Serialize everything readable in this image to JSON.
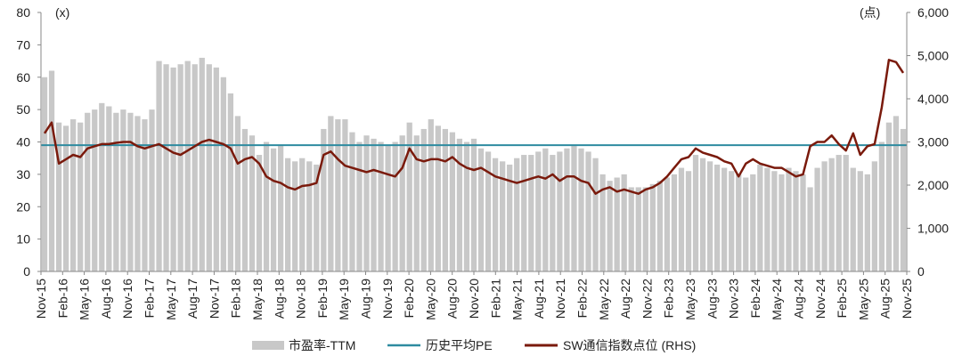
{
  "chart_data": {
    "type": "bar+line",
    "left_unit_label": "(x)",
    "right_unit_label": "(点)",
    "y_left": {
      "min": 0,
      "max": 80,
      "ticks": [
        "0",
        "10",
        "20",
        "30",
        "40",
        "50",
        "60",
        "70",
        "80"
      ]
    },
    "y_right": {
      "min": 0,
      "max": 6000,
      "ticks": [
        "0",
        "1,000",
        "2,000",
        "3,000",
        "4,000",
        "5,000",
        "6,000"
      ]
    },
    "x_ticks": [
      "Nov-15",
      "Feb-16",
      "May-16",
      "Aug-16",
      "Nov-16",
      "Feb-17",
      "May-17",
      "Aug-17",
      "Nov-17",
      "Feb-18",
      "May-18",
      "Aug-18",
      "Nov-18",
      "Feb-19",
      "May-19",
      "Aug-19",
      "Nov-19",
      "Feb-20",
      "May-20",
      "Aug-20",
      "Nov-20",
      "Feb-21",
      "May-21",
      "Aug-21",
      "Nov-21",
      "Feb-22",
      "May-22",
      "Aug-22",
      "Nov-22",
      "Feb-23",
      "May-23",
      "Aug-23",
      "Nov-23",
      "Feb-24",
      "May-24",
      "Aug-24",
      "Nov-24",
      "Feb-25",
      "May-25",
      "Aug-25",
      "Nov-25"
    ],
    "historical_average_pe": 39,
    "grid": false,
    "legend_position": "bottom",
    "series": [
      {
        "name": "市盈率-TTM",
        "kind": "bar",
        "axis": "left",
        "color": "#c8c8c8",
        "x": [
          "Nov-15",
          "Dec-15",
          "Jan-16",
          "Feb-16",
          "Mar-16",
          "Apr-16",
          "May-16",
          "Jun-16",
          "Jul-16",
          "Aug-16",
          "Sep-16",
          "Oct-16",
          "Nov-16",
          "Dec-16",
          "Jan-17",
          "Feb-17",
          "Mar-17",
          "Apr-17",
          "May-17",
          "Jun-17",
          "Jul-17",
          "Aug-17",
          "Sep-17",
          "Oct-17",
          "Nov-17",
          "Dec-17",
          "Jan-18",
          "Feb-18",
          "Mar-18",
          "Apr-18",
          "May-18",
          "Jun-18",
          "Jul-18",
          "Aug-18",
          "Sep-18",
          "Oct-18",
          "Nov-18",
          "Dec-18",
          "Jan-19",
          "Feb-19",
          "Mar-19",
          "Apr-19",
          "May-19",
          "Jun-19",
          "Jul-19",
          "Aug-19",
          "Sep-19",
          "Oct-19",
          "Nov-19",
          "Dec-19",
          "Jan-20",
          "Feb-20",
          "Mar-20",
          "Apr-20",
          "May-20",
          "Jun-20",
          "Jul-20",
          "Aug-20",
          "Sep-20",
          "Oct-20",
          "Nov-20",
          "Dec-20",
          "Jan-21",
          "Feb-21",
          "Mar-21",
          "Apr-21",
          "May-21",
          "Jun-21",
          "Jul-21",
          "Aug-21",
          "Sep-21",
          "Oct-21",
          "Nov-21",
          "Dec-21",
          "Jan-22",
          "Feb-22",
          "Mar-22",
          "Apr-22",
          "May-22",
          "Jun-22",
          "Jul-22",
          "Aug-22",
          "Sep-22",
          "Oct-22",
          "Nov-22",
          "Dec-22",
          "Jan-23",
          "Feb-23",
          "Mar-23",
          "Apr-23",
          "May-23",
          "Jun-23",
          "Jul-23",
          "Aug-23",
          "Sep-23",
          "Oct-23",
          "Nov-23",
          "Dec-23",
          "Jan-24",
          "Feb-24",
          "Mar-24",
          "Apr-24",
          "May-24",
          "Jun-24",
          "Jul-24",
          "Aug-24",
          "Sep-24",
          "Oct-24",
          "Nov-24",
          "Dec-24",
          "Jan-25",
          "Feb-25",
          "Mar-25",
          "Apr-25",
          "May-25",
          "Jun-25",
          "Jul-25",
          "Aug-25",
          "Sep-25",
          "Oct-25",
          "Nov-25"
        ],
        "values": [
          60,
          62,
          46,
          45,
          47,
          46,
          49,
          50,
          52,
          51,
          49,
          50,
          49,
          48,
          47,
          50,
          65,
          64,
          63,
          64,
          65,
          64,
          66,
          64,
          63,
          60,
          55,
          48,
          44,
          42,
          36,
          40,
          38,
          39,
          35,
          34,
          35,
          34,
          33,
          44,
          48,
          47,
          47,
          43,
          40,
          42,
          41,
          40,
          39,
          40,
          42,
          46,
          42,
          44,
          47,
          45,
          44,
          43,
          41,
          40,
          41,
          38,
          37,
          35,
          34,
          33,
          35,
          36,
          36,
          37,
          38,
          36,
          37,
          38,
          39,
          38,
          37,
          35,
          30,
          28,
          29,
          30,
          26,
          26,
          26,
          27,
          28,
          29,
          30,
          32,
          31,
          36,
          35,
          34,
          33,
          32,
          31,
          30,
          29,
          30,
          33,
          32,
          31,
          30,
          32,
          31,
          30,
          26,
          32,
          34,
          35,
          36,
          36,
          32,
          31,
          30,
          34,
          40,
          46,
          48,
          44
        ]
      },
      {
        "name": "历史平均PE",
        "kind": "line",
        "axis": "left",
        "color": "#2e8ba0",
        "values": [
          39
        ]
      },
      {
        "name": "SW通信指数点位 (RHS)",
        "kind": "line",
        "axis": "right",
        "color": "#7a1a0c",
        "x": [
          "Nov-15",
          "Dec-15",
          "Jan-16",
          "Feb-16",
          "Mar-16",
          "Apr-16",
          "May-16",
          "Jun-16",
          "Jul-16",
          "Aug-16",
          "Sep-16",
          "Oct-16",
          "Nov-16",
          "Dec-16",
          "Jan-17",
          "Feb-17",
          "Mar-17",
          "Apr-17",
          "May-17",
          "Jun-17",
          "Jul-17",
          "Aug-17",
          "Sep-17",
          "Oct-17",
          "Nov-17",
          "Dec-17",
          "Jan-18",
          "Feb-18",
          "Mar-18",
          "Apr-18",
          "May-18",
          "Jun-18",
          "Jul-18",
          "Aug-18",
          "Sep-18",
          "Oct-18",
          "Nov-18",
          "Dec-18",
          "Jan-19",
          "Feb-19",
          "Mar-19",
          "Apr-19",
          "May-19",
          "Jun-19",
          "Jul-19",
          "Aug-19",
          "Sep-19",
          "Oct-19",
          "Nov-19",
          "Dec-19",
          "Jan-20",
          "Feb-20",
          "Mar-20",
          "Apr-20",
          "May-20",
          "Jun-20",
          "Jul-20",
          "Aug-20",
          "Sep-20",
          "Oct-20",
          "Nov-20",
          "Dec-20",
          "Jan-21",
          "Feb-21",
          "Mar-21",
          "Apr-21",
          "May-21",
          "Jun-21",
          "Jul-21",
          "Aug-21",
          "Sep-21",
          "Oct-21",
          "Nov-21",
          "Dec-21",
          "Jan-22",
          "Feb-22",
          "Mar-22",
          "Apr-22",
          "May-22",
          "Jun-22",
          "Jul-22",
          "Aug-22",
          "Sep-22",
          "Oct-22",
          "Nov-22",
          "Dec-22",
          "Jan-23",
          "Feb-23",
          "Mar-23",
          "Apr-23",
          "May-23",
          "Jun-23",
          "Jul-23",
          "Aug-23",
          "Sep-23",
          "Oct-23",
          "Nov-23",
          "Dec-23",
          "Jan-24",
          "Feb-24",
          "Mar-24",
          "Apr-24",
          "May-24",
          "Jun-24",
          "Jul-24",
          "Aug-24",
          "Sep-24",
          "Oct-24",
          "Nov-24",
          "Dec-24",
          "Jan-25",
          "Feb-25",
          "Mar-25",
          "Apr-25",
          "May-25",
          "Jun-25",
          "Jul-25",
          "Aug-25",
          "Sep-25",
          "Oct-25",
          "Nov-25"
        ],
        "values": [
          3200,
          3450,
          2500,
          2600,
          2700,
          2650,
          2850,
          2900,
          2950,
          2950,
          2980,
          3000,
          3000,
          2900,
          2850,
          2900,
          2950,
          2850,
          2750,
          2700,
          2800,
          2900,
          3000,
          3050,
          3000,
          2950,
          2850,
          2500,
          2600,
          2650,
          2500,
          2200,
          2100,
          2050,
          1950,
          1900,
          1980,
          2000,
          2050,
          2700,
          2780,
          2600,
          2450,
          2400,
          2350,
          2300,
          2350,
          2300,
          2250,
          2200,
          2400,
          2850,
          2600,
          2550,
          2600,
          2600,
          2550,
          2650,
          2500,
          2400,
          2350,
          2400,
          2300,
          2200,
          2150,
          2100,
          2050,
          2100,
          2150,
          2200,
          2150,
          2250,
          2100,
          2200,
          2200,
          2100,
          2050,
          1800,
          1900,
          1950,
          1850,
          1900,
          1850,
          1800,
          1900,
          1950,
          2050,
          2200,
          2400,
          2600,
          2650,
          2850,
          2750,
          2700,
          2650,
          2550,
          2500,
          2200,
          2500,
          2600,
          2500,
          2450,
          2400,
          2400,
          2300,
          2200,
          2250,
          2900,
          3000,
          3000,
          3150,
          2950,
          2800,
          3200,
          2700,
          2900,
          2950,
          3800,
          4900,
          4850,
          4600
        ]
      }
    ]
  }
}
